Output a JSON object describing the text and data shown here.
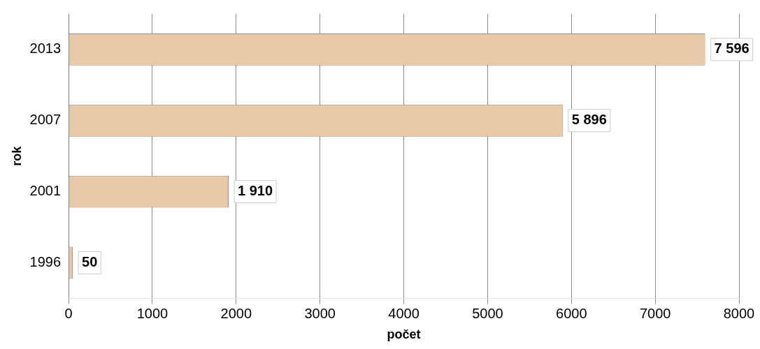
{
  "chart_data": {
    "type": "bar",
    "orientation": "horizontal",
    "xlabel": "počet",
    "ylabel": "rok",
    "categories": [
      "2013",
      "2007",
      "2001",
      "1996"
    ],
    "values": [
      7596,
      5896,
      1910,
      50
    ],
    "value_labels": [
      "7 596",
      "5 896",
      "1 910",
      "50"
    ],
    "color": "#e8c9aa",
    "xlim": [
      0,
      8000
    ],
    "xticks": [
      0,
      1000,
      2000,
      3000,
      4000,
      5000,
      6000,
      7000,
      8000
    ],
    "grid": "x",
    "legend": false
  }
}
